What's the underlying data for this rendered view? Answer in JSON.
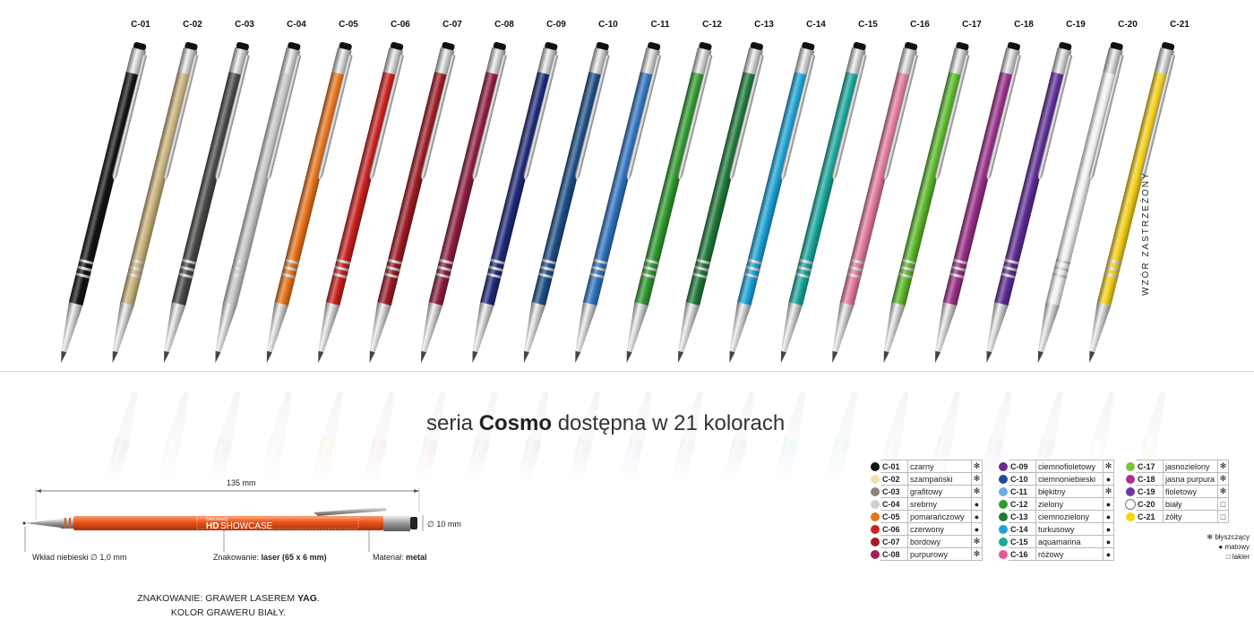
{
  "pens": [
    {
      "code": "C-01",
      "color": "#141414"
    },
    {
      "code": "C-02",
      "color": "#c9b27a"
    },
    {
      "code": "C-03",
      "color": "#4a4845"
    },
    {
      "code": "C-04",
      "color": "#c7c7c7"
    },
    {
      "code": "C-05",
      "color": "#e8731a"
    },
    {
      "code": "C-06",
      "color": "#c8201e"
    },
    {
      "code": "C-07",
      "color": "#9c1c24"
    },
    {
      "code": "C-08",
      "color": "#8e1e3e"
    },
    {
      "code": "C-09",
      "color": "#1e2a7a"
    },
    {
      "code": "C-10",
      "color": "#1d4f86"
    },
    {
      "code": "C-11",
      "color": "#2f73c0"
    },
    {
      "code": "C-12",
      "color": "#2f9a2f"
    },
    {
      "code": "C-13",
      "color": "#1f7a3a"
    },
    {
      "code": "C-14",
      "color": "#1ba3d6"
    },
    {
      "code": "C-15",
      "color": "#19a89c"
    },
    {
      "code": "C-16",
      "color": "#e3799e"
    },
    {
      "code": "C-17",
      "color": "#5bb82a"
    },
    {
      "code": "C-18",
      "color": "#9a2f8a"
    },
    {
      "code": "C-19",
      "color": "#5e2d96"
    },
    {
      "code": "C-20",
      "color": "#f2f2f2"
    },
    {
      "code": "C-21",
      "color": "#f2cf1a"
    }
  ],
  "vertical_note": "WZÓR ZASTRZEŻONY",
  "headline": {
    "prefix": "seria ",
    "brand": "Cosmo",
    "suffix": " dostępna w 21 kolorach"
  },
  "dimensions": {
    "length": "135 mm",
    "diameter": "∅ 10 mm",
    "refill_label": "Wkład niebieski ∅ 1,0 mm",
    "marking_label": "Znakowanie: ",
    "marking_value": "laser (65 x 6 mm)",
    "material_label": "Materiał: ",
    "material_value": "metal",
    "pen_color": "#e8521a",
    "logo_small": "Discovery",
    "logo_hd": "HD",
    "logo_showcase": "SHOWCASE"
  },
  "engraving": {
    "line1_prefix": "ZNAKOWANIE: GRAWER LASEREM ",
    "line1_bold": "YAG",
    "line1_suffix": ".",
    "line2": "KOLOR GRAWERU BIAŁY."
  },
  "finish_symbols": {
    "glossy": "✻",
    "matte": "●",
    "lacquer": "□"
  },
  "color_table": [
    [
      {
        "code": "C-01",
        "name": "czarny",
        "finish": "glossy",
        "color": "#141414"
      },
      {
        "code": "C-02",
        "name": "szampański",
        "finish": "glossy",
        "color": "#efe2b0"
      },
      {
        "code": "C-03",
        "name": "grafitowy",
        "finish": "glossy",
        "color": "#8a8778"
      },
      {
        "code": "C-04",
        "name": "srebrny",
        "finish": "matte",
        "color": "#d0d0d0"
      },
      {
        "code": "C-05",
        "name": "pomarańczowy",
        "finish": "matte",
        "color": "#e8731a"
      },
      {
        "code": "C-06",
        "name": "czerwony",
        "finish": "matte",
        "color": "#d0201e"
      },
      {
        "code": "C-07",
        "name": "bordowy",
        "finish": "glossy",
        "color": "#a31c2a"
      },
      {
        "code": "C-08",
        "name": "purpurowy",
        "finish": "glossy",
        "color": "#a0205a"
      }
    ],
    [
      {
        "code": "C-09",
        "name": "ciemnofioletowy",
        "finish": "glossy",
        "color": "#6a2a8a"
      },
      {
        "code": "C-10",
        "name": "ciemnoniebieski",
        "finish": "matte",
        "color": "#1d4f96"
      },
      {
        "code": "C-11",
        "name": "błękitny",
        "finish": "glossy",
        "color": "#6aaee0"
      },
      {
        "code": "C-12",
        "name": "zielony",
        "finish": "matte",
        "color": "#2f9a2f"
      },
      {
        "code": "C-13",
        "name": "ciemnozielony",
        "finish": "matte",
        "color": "#1f7a3a"
      },
      {
        "code": "C-14",
        "name": "turkusowy",
        "finish": "matte",
        "color": "#1ba3d6"
      },
      {
        "code": "C-15",
        "name": "aquamarina",
        "finish": "matte",
        "color": "#19a89c"
      },
      {
        "code": "C-16",
        "name": "różowy",
        "finish": "matte",
        "color": "#e3598e"
      }
    ],
    [
      {
        "code": "C-17",
        "name": "jasnozielony",
        "finish": "glossy",
        "color": "#7ec23a"
      },
      {
        "code": "C-18",
        "name": "jasna purpura",
        "finish": "glossy",
        "color": "#b0308a"
      },
      {
        "code": "C-19",
        "name": "fioletowy",
        "finish": "glossy",
        "color": "#6a3a9e"
      },
      {
        "code": "C-20",
        "name": "biały",
        "finish": "lacquer",
        "color": "#ffffff"
      },
      {
        "code": "C-21",
        "name": "żółty",
        "finish": "lacquer",
        "color": "#f5d800"
      }
    ]
  ],
  "legend": [
    {
      "finish": "glossy",
      "label": "błyszczący"
    },
    {
      "finish": "matte",
      "label": "matowy"
    },
    {
      "finish": "lacquer",
      "label": "lakier"
    }
  ]
}
